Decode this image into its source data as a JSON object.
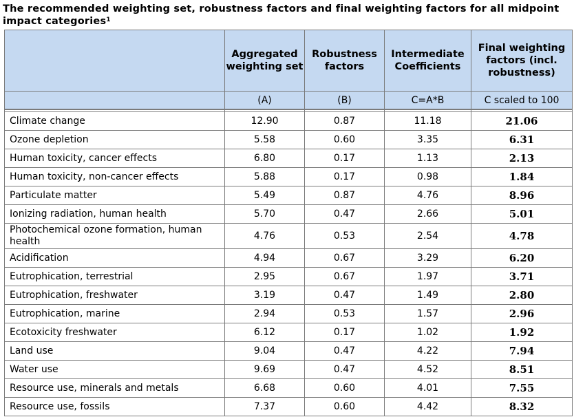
{
  "title": "The recommended weighting set, robustness factors and final weighting factors for all midpoint impact categories",
  "title_sup": "1",
  "headers": {
    "col_a": "Aggregated weighting set",
    "col_b": "Robustness factors",
    "col_c": "Intermediate Coefficients",
    "col_d": "Final weighting factors (incl. robustness)"
  },
  "subheaders": {
    "col_a": "(A)",
    "col_b": "(B)",
    "col_c": "C=A*B",
    "col_d": "C scaled to 100"
  },
  "rows": [
    {
      "category": "Climate change",
      "a": "12.90",
      "b": "0.87",
      "c": "11.18",
      "d": "21.06"
    },
    {
      "category": "Ozone depletion",
      "a": "5.58",
      "b": "0.60",
      "c": "3.35",
      "d": "6.31"
    },
    {
      "category": "Human toxicity, cancer effects",
      "a": "6.80",
      "b": "0.17",
      "c": "1.13",
      "d": "2.13"
    },
    {
      "category": "Human toxicity, non-cancer effects",
      "a": "5.88",
      "b": "0.17",
      "c": "0.98",
      "d": "1.84"
    },
    {
      "category": "Particulate matter",
      "a": "5.49",
      "b": "0.87",
      "c": "4.76",
      "d": "8.96"
    },
    {
      "category": "Ionizing radiation, human health",
      "a": "5.70",
      "b": "0.47",
      "c": "2.66",
      "d": "5.01"
    },
    {
      "category": "Photochemical ozone formation, human health",
      "a": "4.76",
      "b": "0.53",
      "c": "2.54",
      "d": "4.78"
    },
    {
      "category": "Acidification",
      "a": "4.94",
      "b": "0.67",
      "c": "3.29",
      "d": "6.20"
    },
    {
      "category": "Eutrophication, terrestrial",
      "a": "2.95",
      "b": "0.67",
      "c": "1.97",
      "d": "3.71"
    },
    {
      "category": "Eutrophication, freshwater",
      "a": "3.19",
      "b": "0.47",
      "c": "1.49",
      "d": "2.80"
    },
    {
      "category": "Eutrophication, marine",
      "a": "2.94",
      "b": "0.53",
      "c": "1.57",
      "d": "2.96"
    },
    {
      "category": "Ecotoxicity freshwater",
      "a": "6.12",
      "b": "0.17",
      "c": "1.02",
      "d": "1.92"
    },
    {
      "category": "Land use",
      "a": "9.04",
      "b": "0.47",
      "c": "4.22",
      "d": "7.94"
    },
    {
      "category": "Water use",
      "a": "9.69",
      "b": "0.47",
      "c": "4.52",
      "d": "8.51"
    },
    {
      "category": "Resource use, minerals and metals",
      "a": "6.68",
      "b": "0.60",
      "c": "4.01",
      "d": "7.55"
    },
    {
      "category": "Resource use, fossils",
      "a": "7.37",
      "b": "0.60",
      "c": "4.42",
      "d": "8.32"
    }
  ]
}
